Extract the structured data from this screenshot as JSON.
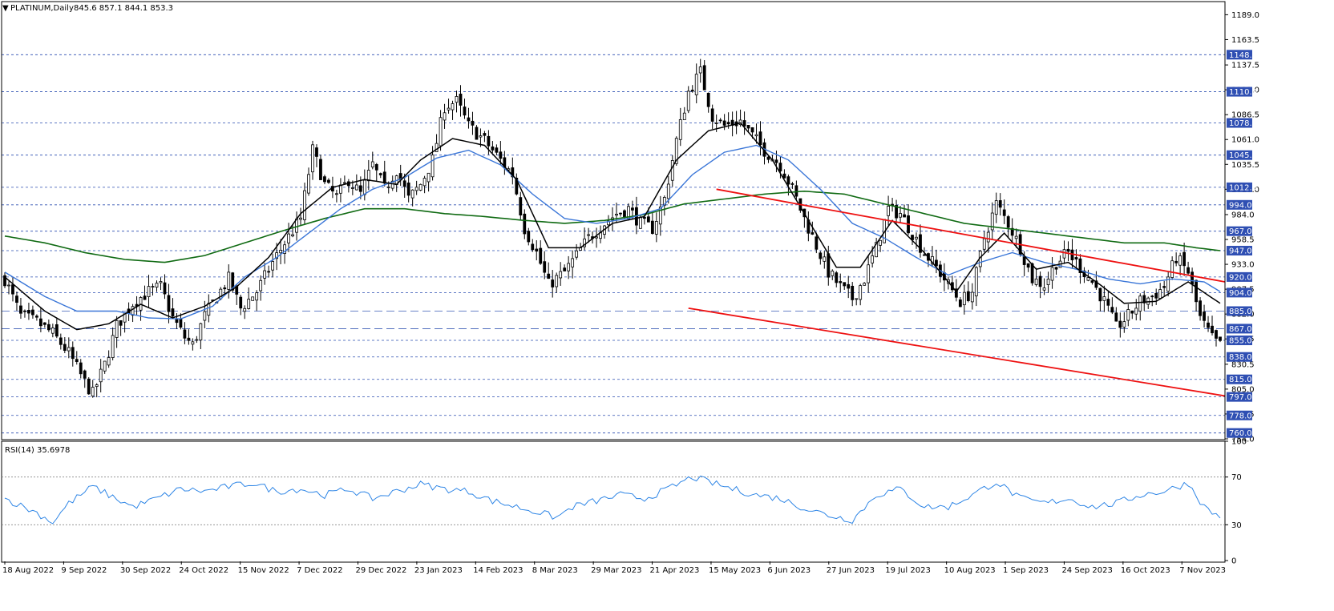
{
  "header": {
    "symbol_line": "PLATINUM,Daily",
    "ohlc": "845.6 857.1 844.1 853.3",
    "collapse_glyph": "▼"
  },
  "chart_data": {
    "type": "candlestick",
    "ylim": [
      754,
      1200
    ],
    "y_ticks": [
      1189.0,
      1163.5,
      1137.5,
      1112.0,
      1086.5,
      1061.0,
      1035.5,
      1010.0,
      984.0,
      958.5,
      933.0,
      907.5,
      882.0,
      856.5,
      830.5,
      805.0,
      779.5,
      754.0
    ],
    "levels": [
      1148.0,
      1110.0,
      1078.0,
      1045.0,
      1012.0,
      994.0,
      967.0,
      947.0,
      920.0,
      904.0,
      885.0,
      867.0,
      855.0,
      838.0,
      815.0,
      797.0,
      778.0,
      760.0
    ],
    "dashed_long_levels": [
      885.0,
      867.0
    ],
    "x_labels": [
      "18 Aug 2022",
      "9 Sep 2022",
      "30 Sep 2022",
      "24 Oct 2022",
      "15 Nov 2022",
      "7 Dec 2022",
      "29 Dec 2022",
      "23 Jan 2023",
      "14 Feb 2023",
      "8 Mar 2023",
      "29 Mar 2023",
      "21 Apr 2023",
      "15 May 2023",
      "6 Jun 2023",
      "27 Jun 2023",
      "19 Jul 2023",
      "10 Aug 2023",
      "1 Sep 2023",
      "24 Sep 2023",
      "16 Oct 2023",
      "7 Nov 2023"
    ],
    "price_anchors": [
      [
        0,
        918
      ],
      [
        4,
        880
      ],
      [
        8,
        874
      ],
      [
        12,
        862
      ],
      [
        16,
        842
      ],
      [
        20,
        812
      ],
      [
        22,
        800
      ],
      [
        25,
        830
      ],
      [
        28,
        870
      ],
      [
        32,
        893
      ],
      [
        36,
        905
      ],
      [
        39,
        910
      ],
      [
        42,
        878
      ],
      [
        45,
        858
      ],
      [
        47,
        850
      ],
      [
        50,
        880
      ],
      [
        53,
        900
      ],
      [
        56,
        918
      ],
      [
        59,
        888
      ],
      [
        63,
        905
      ],
      [
        67,
        935
      ],
      [
        70,
        955
      ],
      [
        74,
        980
      ],
      [
        77,
        1050
      ],
      [
        80,
        1015
      ],
      [
        83,
        1002
      ],
      [
        86,
        1020
      ],
      [
        89,
        1005
      ],
      [
        92,
        1035
      ],
      [
        95,
        1010
      ],
      [
        98,
        1030
      ],
      [
        101,
        1000
      ],
      [
        104,
        1015
      ],
      [
        107,
        1040
      ],
      [
        110,
        1095
      ],
      [
        113,
        1100
      ],
      [
        116,
        1075
      ],
      [
        120,
        1060
      ],
      [
        124,
        1040
      ],
      [
        127,
        1025
      ],
      [
        130,
        970
      ],
      [
        133,
        945
      ],
      [
        136,
        912
      ],
      [
        140,
        925
      ],
      [
        143,
        942
      ],
      [
        146,
        960
      ],
      [
        150,
        975
      ],
      [
        153,
        985
      ],
      [
        156,
        990
      ],
      [
        159,
        975
      ],
      [
        162,
        970
      ],
      [
        165,
        1000
      ],
      [
        168,
        1060
      ],
      [
        171,
        1110
      ],
      [
        174,
        1130
      ],
      [
        177,
        1085
      ],
      [
        180,
        1075
      ],
      [
        184,
        1080
      ],
      [
        187,
        1065
      ],
      [
        190,
        1050
      ],
      [
        194,
        1035
      ],
      [
        197,
        1010
      ],
      [
        200,
        980
      ],
      [
        203,
        952
      ],
      [
        206,
        925
      ],
      [
        209,
        910
      ],
      [
        212,
        898
      ],
      [
        215,
        918
      ],
      [
        218,
        950
      ],
      [
        221,
        990
      ],
      [
        224,
        985
      ],
      [
        227,
        965
      ],
      [
        230,
        945
      ],
      [
        233,
        930
      ],
      [
        236,
        912
      ],
      [
        239,
        895
      ],
      [
        242,
        905
      ],
      [
        245,
        960
      ],
      [
        248,
        995
      ],
      [
        251,
        975
      ],
      [
        254,
        950
      ],
      [
        257,
        918
      ],
      [
        260,
        912
      ],
      [
        263,
        935
      ],
      [
        266,
        945
      ],
      [
        269,
        930
      ],
      [
        272,
        915
      ],
      [
        275,
        895
      ],
      [
        278,
        868
      ],
      [
        281,
        880
      ],
      [
        284,
        895
      ],
      [
        287,
        900
      ],
      [
        290,
        910
      ],
      [
        293,
        940
      ],
      [
        296,
        925
      ],
      [
        299,
        878
      ],
      [
        302,
        857
      ],
      [
        304,
        850
      ]
    ],
    "ma_black_anchors": [
      [
        0,
        920
      ],
      [
        10,
        885
      ],
      [
        18,
        866
      ],
      [
        26,
        872
      ],
      [
        34,
        892
      ],
      [
        42,
        878
      ],
      [
        50,
        890
      ],
      [
        58,
        910
      ],
      [
        66,
        940
      ],
      [
        74,
        985
      ],
      [
        82,
        1012
      ],
      [
        90,
        1020
      ],
      [
        98,
        1015
      ],
      [
        104,
        1040
      ],
      [
        112,
        1062
      ],
      [
        120,
        1055
      ],
      [
        128,
        1020
      ],
      [
        136,
        950
      ],
      [
        144,
        950
      ],
      [
        152,
        975
      ],
      [
        160,
        982
      ],
      [
        168,
        1040
      ],
      [
        176,
        1070
      ],
      [
        184,
        1078
      ],
      [
        192,
        1040
      ],
      [
        200,
        985
      ],
      [
        208,
        930
      ],
      [
        214,
        930
      ],
      [
        222,
        978
      ],
      [
        230,
        945
      ],
      [
        238,
        905
      ],
      [
        244,
        940
      ],
      [
        250,
        965
      ],
      [
        258,
        928
      ],
      [
        266,
        935
      ],
      [
        274,
        912
      ],
      [
        280,
        893
      ],
      [
        288,
        895
      ],
      [
        296,
        915
      ],
      [
        304,
        893
      ]
    ],
    "ma_blue_anchors": [
      [
        0,
        925
      ],
      [
        10,
        900
      ],
      [
        18,
        885
      ],
      [
        28,
        885
      ],
      [
        36,
        878
      ],
      [
        44,
        877
      ],
      [
        52,
        890
      ],
      [
        60,
        920
      ],
      [
        68,
        940
      ],
      [
        76,
        965
      ],
      [
        84,
        990
      ],
      [
        92,
        1010
      ],
      [
        100,
        1022
      ],
      [
        108,
        1042
      ],
      [
        116,
        1050
      ],
      [
        124,
        1035
      ],
      [
        132,
        1005
      ],
      [
        140,
        980
      ],
      [
        148,
        975
      ],
      [
        156,
        980
      ],
      [
        164,
        990
      ],
      [
        172,
        1025
      ],
      [
        180,
        1048
      ],
      [
        188,
        1055
      ],
      [
        196,
        1040
      ],
      [
        204,
        1010
      ],
      [
        212,
        975
      ],
      [
        220,
        960
      ],
      [
        228,
        940
      ],
      [
        236,
        922
      ],
      [
        244,
        935
      ],
      [
        252,
        945
      ],
      [
        260,
        935
      ],
      [
        268,
        928
      ],
      [
        276,
        918
      ],
      [
        284,
        913
      ],
      [
        292,
        918
      ],
      [
        300,
        915
      ],
      [
        304,
        905
      ]
    ],
    "ma_green_anchors": [
      [
        0,
        962
      ],
      [
        10,
        955
      ],
      [
        20,
        945
      ],
      [
        30,
        938
      ],
      [
        40,
        935
      ],
      [
        50,
        942
      ],
      [
        60,
        955
      ],
      [
        70,
        968
      ],
      [
        80,
        980
      ],
      [
        90,
        990
      ],
      [
        100,
        990
      ],
      [
        110,
        985
      ],
      [
        120,
        982
      ],
      [
        130,
        978
      ],
      [
        140,
        975
      ],
      [
        150,
        978
      ],
      [
        160,
        984
      ],
      [
        170,
        995
      ],
      [
        180,
        1000
      ],
      [
        190,
        1005
      ],
      [
        200,
        1008
      ],
      [
        210,
        1005
      ],
      [
        220,
        995
      ],
      [
        230,
        985
      ],
      [
        240,
        975
      ],
      [
        250,
        970
      ],
      [
        260,
        965
      ],
      [
        270,
        960
      ],
      [
        280,
        955
      ],
      [
        290,
        955
      ],
      [
        298,
        950
      ],
      [
        304,
        947
      ]
    ],
    "channel_upper": [
      [
        178,
        1010
      ],
      [
        306,
        915
      ]
    ],
    "channel_lower": [
      [
        171,
        888
      ],
      [
        306,
        798
      ]
    ],
    "rsi": {
      "label": "RSI(14) 35.6978",
      "ylim": [
        0,
        100
      ],
      "ticks": [
        100,
        70,
        30,
        0
      ],
      "anchors": [
        [
          0,
          52
        ],
        [
          8,
          40
        ],
        [
          12,
          32
        ],
        [
          16,
          48
        ],
        [
          22,
          62
        ],
        [
          26,
          55
        ],
        [
          32,
          45
        ],
        [
          38,
          52
        ],
        [
          44,
          60
        ],
        [
          50,
          58
        ],
        [
          56,
          62
        ],
        [
          62,
          65
        ],
        [
          68,
          58
        ],
        [
          74,
          60
        ],
        [
          80,
          55
        ],
        [
          86,
          60
        ],
        [
          92,
          52
        ],
        [
          98,
          58
        ],
        [
          104,
          64
        ],
        [
          110,
          60
        ],
        [
          116,
          58
        ],
        [
          122,
          50
        ],
        [
          128,
          45
        ],
        [
          134,
          40
        ],
        [
          138,
          36
        ],
        [
          142,
          45
        ],
        [
          148,
          50
        ],
        [
          154,
          55
        ],
        [
          160,
          52
        ],
        [
          166,
          60
        ],
        [
          172,
          70
        ],
        [
          176,
          66
        ],
        [
          182,
          60
        ],
        [
          188,
          55
        ],
        [
          194,
          52
        ],
        [
          200,
          44
        ],
        [
          206,
          38
        ],
        [
          212,
          34
        ],
        [
          218,
          55
        ],
        [
          224,
          60
        ],
        [
          230,
          45
        ],
        [
          236,
          45
        ],
        [
          242,
          55
        ],
        [
          248,
          66
        ],
        [
          254,
          52
        ],
        [
          260,
          48
        ],
        [
          266,
          52
        ],
        [
          272,
          45
        ],
        [
          278,
          48
        ],
        [
          284,
          55
        ],
        [
          290,
          58
        ],
        [
          296,
          65
        ],
        [
          300,
          45
        ],
        [
          304,
          36
        ]
      ]
    }
  }
}
